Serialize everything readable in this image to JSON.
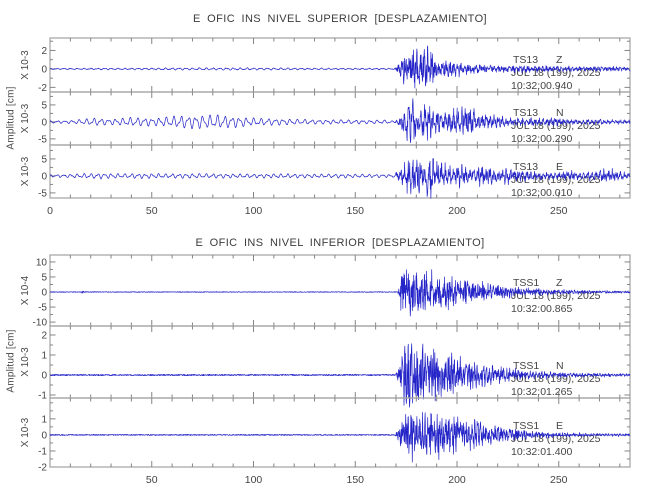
{
  "page": {
    "bg": "#ffffff"
  },
  "colors": {
    "trace": "#2424c8",
    "frame": "#a9a9a9",
    "tick": "#858585",
    "text": "#454545",
    "title": "#3c3c3c"
  },
  "chart_data": [
    {
      "type": "line",
      "title": "E OFIC INS NIVEL SUPERIOR [DESPLAZAMIENTO]",
      "ylabel": "Amplitud [cm]",
      "xlim": [
        0,
        285
      ],
      "x_minor_step": 10,
      "xticks": [
        {
          "v": 0,
          "l": "0"
        },
        {
          "v": 50,
          "l": "50"
        },
        {
          "v": 100,
          "l": "100"
        },
        {
          "v": 150,
          "l": "150"
        },
        {
          "v": 200,
          "l": "200"
        },
        {
          "v": 250,
          "l": "250"
        }
      ],
      "traces": [
        {
          "station": "TS13",
          "component": "Z",
          "date": "JUL 18 (199), 2025",
          "time": "10:32:00.940",
          "scale": "X 10-3",
          "ylim": [
            -2.5,
            3.35
          ],
          "yticks": [
            -2,
            0,
            2
          ],
          "ytick_labels": [
            "-2",
            "0",
            "2"
          ],
          "smooth_env": [
            [
              0,
              0.05
            ],
            [
              30,
              0.08
            ],
            [
              60,
              0.1
            ],
            [
              90,
              0.12
            ],
            [
              120,
              0.09
            ],
            [
              150,
              0.07
            ],
            [
              168,
              0.06
            ],
            [
              172,
              0
            ],
            [
              285,
              0
            ]
          ],
          "burst_env": [
            [
              0,
              0
            ],
            [
              169,
              0
            ],
            [
              172,
              1.0
            ],
            [
              175,
              2.4
            ],
            [
              179,
              3.0
            ],
            [
              183,
              2.4
            ],
            [
              186,
              3.0
            ],
            [
              190,
              1.8
            ],
            [
              196,
              1.1
            ],
            [
              204,
              0.8
            ],
            [
              214,
              0.6
            ],
            [
              224,
              0.5
            ],
            [
              236,
              0.45
            ],
            [
              250,
              0.4
            ],
            [
              262,
              0.3
            ],
            [
              272,
              0.35
            ],
            [
              285,
              0.25
            ]
          ],
          "noise_floor": 0.03,
          "f_smooth": 0.3,
          "f_burst": 0.55,
          "noise_mix": 0.5,
          "seed": 11
        },
        {
          "station": "TS13",
          "component": "N",
          "date": "JUL 18 (199), 2025",
          "time": "10:32:00.290",
          "scale": "X 10-3",
          "ylim": [
            -6.8,
            8.8
          ],
          "yticks": [
            -5,
            0,
            5
          ],
          "ytick_labels": [
            "-5",
            "0",
            "5"
          ],
          "smooth_env": [
            [
              0,
              0.3
            ],
            [
              12,
              0.5
            ],
            [
              22,
              1.1
            ],
            [
              30,
              0.8
            ],
            [
              40,
              1.3
            ],
            [
              52,
              1.1
            ],
            [
              62,
              1.7
            ],
            [
              72,
              1.9
            ],
            [
              82,
              2.0
            ],
            [
              90,
              1.6
            ],
            [
              100,
              1.1
            ],
            [
              112,
              0.9
            ],
            [
              124,
              0.7
            ],
            [
              138,
              0.6
            ],
            [
              152,
              0.55
            ],
            [
              166,
              0.5
            ],
            [
              172,
              0
            ],
            [
              285,
              0
            ]
          ],
          "burst_env": [
            [
              0,
              0
            ],
            [
              169,
              0
            ],
            [
              172,
              2.0
            ],
            [
              175,
              6.0
            ],
            [
              178,
              7.5
            ],
            [
              182,
              5.5
            ],
            [
              186,
              7.0
            ],
            [
              190,
              4.0
            ],
            [
              194,
              3.0
            ],
            [
              199,
              5.0
            ],
            [
              204,
              5.8
            ],
            [
              209,
              4.5
            ],
            [
              214,
              2.8
            ],
            [
              220,
              2.0
            ],
            [
              228,
              1.6
            ],
            [
              238,
              1.3
            ],
            [
              246,
              1.6
            ],
            [
              254,
              1.1
            ],
            [
              262,
              0.9
            ],
            [
              270,
              1.1
            ],
            [
              278,
              0.8
            ],
            [
              285,
              0.7
            ]
          ],
          "noise_floor": 0.08,
          "f_smooth": 0.28,
          "f_burst": 0.5,
          "noise_mix": 0.45,
          "seed": 22
        },
        {
          "station": "TS13",
          "component": "E",
          "date": "JUL 18 (199), 2025",
          "time": "10:32:00.010",
          "scale": "X 10-3",
          "ylim": [
            -6.5,
            9.1
          ],
          "yticks": [
            -5,
            0,
            5
          ],
          "ytick_labels": [
            "-5",
            "0",
            "5"
          ],
          "smooth_env": [
            [
              0,
              0.3
            ],
            [
              15,
              0.6
            ],
            [
              25,
              0.8
            ],
            [
              35,
              0.6
            ],
            [
              45,
              0.7
            ],
            [
              58,
              0.6
            ],
            [
              70,
              0.65
            ],
            [
              85,
              0.6
            ],
            [
              100,
              0.55
            ],
            [
              115,
              0.6
            ],
            [
              130,
              0.5
            ],
            [
              145,
              0.55
            ],
            [
              160,
              0.45
            ],
            [
              170,
              0.4
            ],
            [
              174,
              0
            ],
            [
              285,
              0
            ]
          ],
          "burst_env": [
            [
              0,
              0
            ],
            [
              169,
              0
            ],
            [
              173,
              3.0
            ],
            [
              176,
              6.5
            ],
            [
              180,
              8.5
            ],
            [
              184,
              6.0
            ],
            [
              187,
              7.8
            ],
            [
              191,
              5.0
            ],
            [
              196,
              3.5
            ],
            [
              202,
              4.2
            ],
            [
              208,
              3.0
            ],
            [
              213,
              3.8
            ],
            [
              219,
              2.6
            ],
            [
              226,
              3.0
            ],
            [
              233,
              2.0
            ],
            [
              240,
              1.5
            ],
            [
              248,
              1.2
            ],
            [
              255,
              1.8
            ],
            [
              261,
              1.2
            ],
            [
              268,
              2.0
            ],
            [
              274,
              2.6
            ],
            [
              280,
              1.6
            ],
            [
              285,
              1.0
            ]
          ],
          "noise_floor": 0.08,
          "f_smooth": 0.3,
          "f_burst": 0.5,
          "noise_mix": 0.45,
          "seed": 33
        }
      ]
    },
    {
      "type": "line",
      "title": "E OFIC INS NIVEL INFERIOR [DESPLAZAMIENTO]",
      "ylabel": "Amplitud [cm]",
      "xlim": [
        0,
        285
      ],
      "x_minor_step": 10,
      "xticks": [
        {
          "v": 50,
          "l": "50"
        },
        {
          "v": 100,
          "l": "100"
        },
        {
          "v": 150,
          "l": "150"
        },
        {
          "v": 200,
          "l": "200"
        },
        {
          "v": 250,
          "l": "250"
        }
      ],
      "traces": [
        {
          "station": "TSS1",
          "component": "Z",
          "date": "JUL 18 (199), 2025",
          "time": "10:32:00.865",
          "scale": "X 10-4",
          "ylim": [
            -11.3,
            12.3
          ],
          "yticks": [
            -10,
            -5,
            0,
            5,
            10
          ],
          "ytick_labels": [
            "-10",
            "-5",
            "0",
            "5",
            "10"
          ],
          "smooth_env": [
            [
              0,
              0
            ],
            [
              285,
              0
            ]
          ],
          "burst_env": [
            [
              0,
              0
            ],
            [
              15,
              0
            ],
            [
              16,
              0.7
            ],
            [
              17,
              0
            ],
            [
              170,
              0
            ],
            [
              171,
              0.5
            ],
            [
              172.5,
              10.5
            ],
            [
              174,
              12.5
            ],
            [
              176,
              9.0
            ],
            [
              179,
              10.5
            ],
            [
              182,
              7.5
            ],
            [
              185,
              8.5
            ],
            [
              188,
              10.5
            ],
            [
              191,
              6.0
            ],
            [
              196,
              6.5
            ],
            [
              201,
              5.0
            ],
            [
              206,
              5.5
            ],
            [
              211,
              4.2
            ],
            [
              217,
              3.2
            ],
            [
              224,
              2.4
            ],
            [
              232,
              1.8
            ],
            [
              242,
              1.2
            ],
            [
              252,
              0.9
            ],
            [
              262,
              0.7
            ],
            [
              272,
              0.5
            ],
            [
              285,
              0.4
            ]
          ],
          "noise_floor": 0.12,
          "f_smooth": 0.3,
          "f_burst": 0.8,
          "noise_mix": 0.6,
          "seed": 44
        },
        {
          "station": "TSS1",
          "component": "N",
          "date": "JUL 18 (199), 2025",
          "time": "10:32:01.265",
          "scale": "X 10-3",
          "ylim": [
            -1.15,
            2.45
          ],
          "yticks": [
            -1,
            0,
            1,
            2
          ],
          "ytick_labels": [
            "-1",
            "0",
            "1",
            "2"
          ],
          "smooth_env": [
            [
              0,
              0
            ],
            [
              285,
              0
            ]
          ],
          "burst_env": [
            [
              0,
              0
            ],
            [
              169,
              0
            ],
            [
              171,
              0.3
            ],
            [
              173,
              1.4
            ],
            [
              175,
              2.0
            ],
            [
              177,
              3.2
            ],
            [
              179,
              1.6
            ],
            [
              182,
              2.2
            ],
            [
              185,
              1.5
            ],
            [
              188,
              1.8
            ],
            [
              192,
              1.3
            ],
            [
              196,
              1.5
            ],
            [
              201,
              1.1
            ],
            [
              206,
              0.9
            ],
            [
              212,
              0.7
            ],
            [
              218,
              0.55
            ],
            [
              226,
              0.4
            ],
            [
              234,
              0.3
            ],
            [
              244,
              0.2
            ],
            [
              254,
              0.14
            ],
            [
              264,
              0.1
            ],
            [
              285,
              0.07
            ]
          ],
          "noise_floor": 0.035,
          "f_smooth": 0.3,
          "f_burst": 0.7,
          "noise_mix": 0.55,
          "seed": 55
        },
        {
          "station": "TSS1",
          "component": "E",
          "date": "JUL 18 (199), 2025",
          "time": "10:32:01.400",
          "scale": "X 10-3",
          "ylim": [
            -2.0,
            2.3
          ],
          "yticks": [
            -2,
            -1,
            0,
            1
          ],
          "ytick_labels": [
            "-2",
            "-1",
            "0",
            "1"
          ],
          "smooth_env": [
            [
              0,
              0
            ],
            [
              285,
              0
            ]
          ],
          "burst_env": [
            [
              0,
              0
            ],
            [
              169,
              0
            ],
            [
              171,
              0.3
            ],
            [
              173,
              1.1
            ],
            [
              175,
              1.7
            ],
            [
              177,
              2.1
            ],
            [
              180,
              1.5
            ],
            [
              183,
              1.9
            ],
            [
              186,
              2.1
            ],
            [
              189,
              1.5
            ],
            [
              192,
              1.8
            ],
            [
              196,
              1.2
            ],
            [
              200,
              1.5
            ],
            [
              205,
              1.0
            ],
            [
              210,
              1.2
            ],
            [
              215,
              0.8
            ],
            [
              221,
              0.6
            ],
            [
              228,
              0.45
            ],
            [
              236,
              0.32
            ],
            [
              246,
              0.2
            ],
            [
              256,
              0.13
            ],
            [
              266,
              0.1
            ],
            [
              285,
              0.07
            ]
          ],
          "noise_floor": 0.035,
          "f_smooth": 0.3,
          "f_burst": 0.7,
          "noise_mix": 0.55,
          "seed": 66
        }
      ]
    }
  ]
}
